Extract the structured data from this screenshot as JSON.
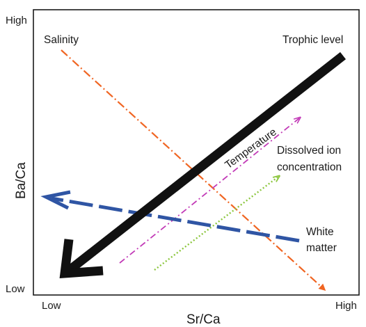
{
  "axes": {
    "x_title": "Sr/Ca",
    "y_title": "Ba/Ca",
    "x_low": "Low",
    "x_high": "High",
    "y_low": "Low",
    "y_high": "High"
  },
  "labels": {
    "salinity": "Salinity",
    "trophic_level": "Trophic level",
    "temperature": "Temperature",
    "dissolved_line1": "Dissolved ion",
    "dissolved_line2": "concentration",
    "white_line1": "White",
    "white_line2": "matter"
  },
  "colors": {
    "frame": "#1a1a1a",
    "salinity": "#f06522",
    "trophic_level": "#111111",
    "temperature": "#c23ab7",
    "dissolved_ion": "#8cc63e",
    "white_matter": "#2f55a4"
  }
}
